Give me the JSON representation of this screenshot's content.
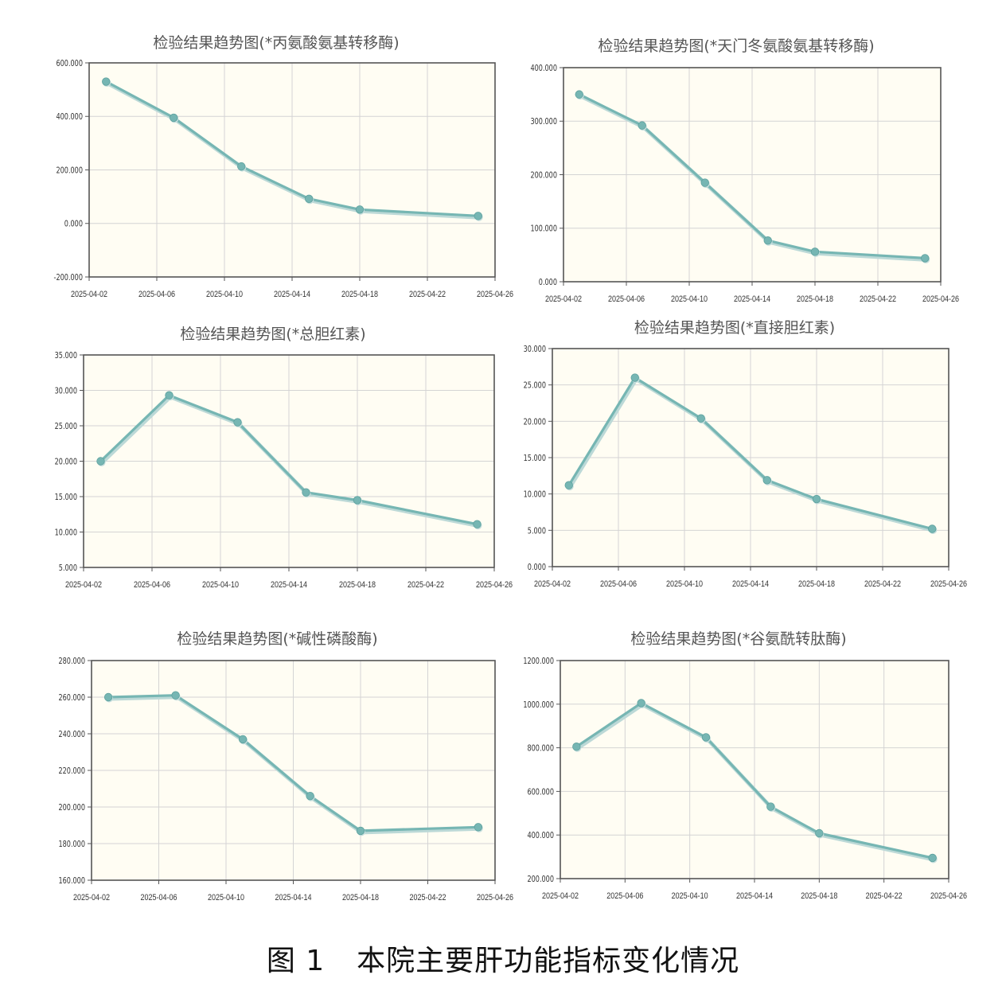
{
  "figure": {
    "caption_number": "图 1",
    "caption_text": "本院主要肝功能指标变化情况"
  },
  "style": {
    "line_color": "#76b6b3",
    "plot_bg": "#fffdf3",
    "axis_color": "#555555",
    "grid_color": "#d4d4d4"
  },
  "chart_data": [
    {
      "type": "line",
      "title": "检验结果趋势图(*丙氨酸氨基转移酶)",
      "x_ticks": [
        "2025-04-02",
        "2025-04-06",
        "2025-04-10",
        "2025-04-14",
        "2025-04-18",
        "2025-04-22",
        "2025-04-26"
      ],
      "y_ticks": [
        "-200.000",
        "0.000",
        "200.000",
        "400.000",
        "600.000"
      ],
      "ylim": [
        -200,
        600
      ],
      "xlim": [
        "2025-04-02",
        "2025-04-26"
      ],
      "grid": true,
      "x": [
        "2025-04-03",
        "2025-04-07",
        "2025-04-11",
        "2025-04-15",
        "2025-04-18",
        "2025-04-25"
      ],
      "y": [
        530,
        395,
        213,
        92,
        52,
        28
      ]
    },
    {
      "type": "line",
      "title": "检验结果趋势图(*天门冬氨酸氨基转移酶)",
      "x_ticks": [
        "2025-04-02",
        "2025-04-06",
        "2025-04-10",
        "2025-04-14",
        "2025-04-18",
        "2025-04-22",
        "2025-04-26"
      ],
      "y_ticks": [
        "0.000",
        "100.000",
        "200.000",
        "300.000",
        "400.000"
      ],
      "ylim": [
        0,
        400
      ],
      "xlim": [
        "2025-04-02",
        "2025-04-26"
      ],
      "grid": true,
      "x": [
        "2025-04-03",
        "2025-04-07",
        "2025-04-11",
        "2025-04-15",
        "2025-04-18",
        "2025-04-25"
      ],
      "y": [
        350,
        292,
        185,
        77,
        56,
        44
      ]
    },
    {
      "type": "line",
      "title": "检验结果趋势图(*总胆红素)",
      "x_ticks": [
        "2025-04-02",
        "2025-04-06",
        "2025-04-10",
        "2025-04-14",
        "2025-04-18",
        "2025-04-22",
        "2025-04-26"
      ],
      "y_ticks": [
        "5.000",
        "10.000",
        "15.000",
        "20.000",
        "25.000",
        "30.000",
        "35.000"
      ],
      "ylim": [
        5,
        35
      ],
      "xlim": [
        "2025-04-02",
        "2025-04-26"
      ],
      "grid": true,
      "x": [
        "2025-04-03",
        "2025-04-07",
        "2025-04-11",
        "2025-04-15",
        "2025-04-18",
        "2025-04-25"
      ],
      "y": [
        20,
        29.3,
        25.5,
        15.6,
        14.5,
        11.1
      ]
    },
    {
      "type": "line",
      "title": "检验结果趋势图(*直接胆红素)",
      "x_ticks": [
        "2025-04-02",
        "2025-04-06",
        "2025-04-10",
        "2025-04-14",
        "2025-04-18",
        "2025-04-22",
        "2025-04-26"
      ],
      "y_ticks": [
        "0.000",
        "5.000",
        "10.000",
        "15.000",
        "20.000",
        "25.000",
        "30.000"
      ],
      "ylim": [
        0,
        30
      ],
      "xlim": [
        "2025-04-02",
        "2025-04-26"
      ],
      "grid": true,
      "x": [
        "2025-04-03",
        "2025-04-07",
        "2025-04-11",
        "2025-04-15",
        "2025-04-18",
        "2025-04-25"
      ],
      "y": [
        11.2,
        26,
        20.4,
        11.9,
        9.3,
        5.2
      ]
    },
    {
      "type": "line",
      "title": "检验结果趋势图(*碱性磷酸酶)",
      "x_ticks": [
        "2025-04-02",
        "2025-04-06",
        "2025-04-10",
        "2025-04-14",
        "2025-04-18",
        "2025-04-22",
        "2025-04-26"
      ],
      "y_ticks": [
        "160.000",
        "180.000",
        "200.000",
        "220.000",
        "240.000",
        "260.000",
        "280.000"
      ],
      "ylim": [
        160,
        280
      ],
      "xlim": [
        "2025-04-02",
        "2025-04-26"
      ],
      "grid": true,
      "x": [
        "2025-04-03",
        "2025-04-07",
        "2025-04-11",
        "2025-04-15",
        "2025-04-18",
        "2025-04-25"
      ],
      "y": [
        260,
        261,
        237,
        206,
        187,
        189
      ]
    },
    {
      "type": "line",
      "title": "检验结果趋势图(*谷氨酰转肽酶)",
      "x_ticks": [
        "2025-04-02",
        "2025-04-06",
        "2025-04-10",
        "2025-04-14",
        "2025-04-18",
        "2025-04-22",
        "2025-04-26"
      ],
      "y_ticks": [
        "200.000",
        "400.000",
        "600.000",
        "800.000",
        "1000.000",
        "1200.000"
      ],
      "ylim": [
        200,
        1200
      ],
      "xlim": [
        "2025-04-02",
        "2025-04-26"
      ],
      "grid": true,
      "x": [
        "2025-04-03",
        "2025-04-07",
        "2025-04-11",
        "2025-04-15",
        "2025-04-18",
        "2025-04-25"
      ],
      "y": [
        805,
        1005,
        848,
        530,
        408,
        295
      ]
    }
  ]
}
